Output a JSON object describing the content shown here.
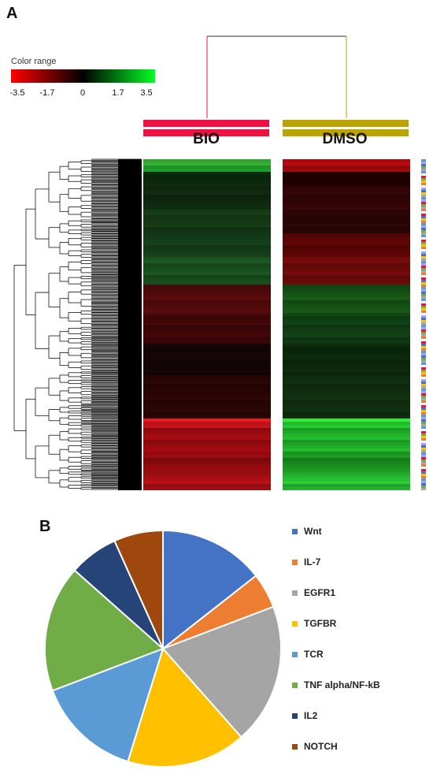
{
  "panel_a": {
    "letter": "A",
    "color_range": {
      "label": "Color range",
      "ticks": [
        "-3.5",
        "-1.7",
        "0",
        "1.7",
        "3.5"
      ],
      "colors": [
        "#ff0000",
        "#000000",
        "#00ff22"
      ]
    },
    "groups": [
      {
        "label": "BIO",
        "color": "#ee1144"
      },
      {
        "label": "DMSO",
        "color": "#bba400"
      }
    ]
  },
  "chart_data": {
    "type": "pie",
    "panel": "B",
    "categories": [
      "Wnt",
      "IL-7",
      "EGFR1",
      "TGFBR",
      "TCR",
      "TNF alpha/NF-kB",
      "IL2",
      "NOTCH"
    ],
    "values": [
      15,
      5,
      20,
      17,
      15,
      18,
      7,
      7
    ],
    "colors": [
      "#4472c4",
      "#ed7d31",
      "#a5a5a5",
      "#ffc000",
      "#5b9bd5",
      "#70ad47",
      "#264478",
      "#9e480e"
    ],
    "legend_position": "right"
  }
}
